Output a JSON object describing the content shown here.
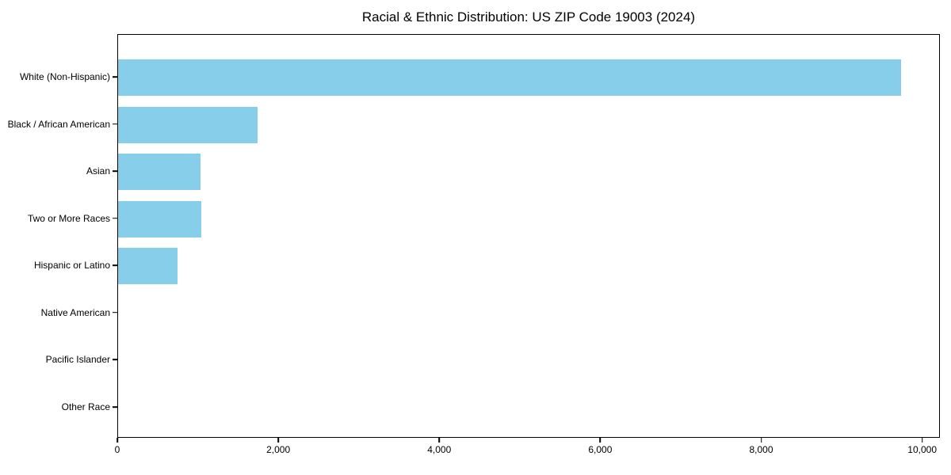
{
  "figure": {
    "title": "Racial & Ethnic Distribution: US ZIP Code 19003 (2024)"
  },
  "chart_data": {
    "type": "bar",
    "orientation": "horizontal",
    "title": "Racial & Ethnic Distribution: US ZIP Code 19003 (2024)",
    "xlabel": "",
    "ylabel": "",
    "categories": [
      "White (Non-Hispanic)",
      "Black / African American",
      "Asian",
      "Two or More Races",
      "Hispanic or Latino",
      "Native American",
      "Pacific Islander",
      "Other Race"
    ],
    "values": [
      9730,
      1730,
      1025,
      1035,
      740,
      0,
      0,
      0
    ],
    "xlim": [
      0,
      10220
    ],
    "x_ticks": [
      0,
      2000,
      4000,
      6000,
      8000,
      10000
    ],
    "x_tick_labels": [
      "0",
      "2,000",
      "4,000",
      "6,000",
      "8,000",
      "10,000"
    ],
    "bar_color": "#87CEEB",
    "background_color": "#FFFFFF",
    "spine_color": "#000000",
    "grid": false,
    "legend": "none"
  }
}
